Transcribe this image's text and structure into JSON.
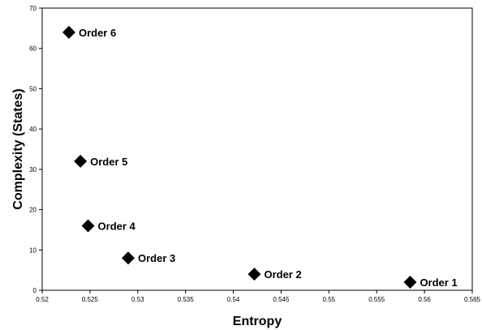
{
  "chart_data": {
    "type": "scatter",
    "title": "",
    "xlabel": "Entropy",
    "ylabel": "Complexity (States)",
    "xlim": [
      0.52,
      0.565
    ],
    "ylim": [
      0,
      70
    ],
    "xticks": [
      "0.52",
      "0.525",
      "0.53",
      "0.535",
      "0.54",
      "0.545",
      "0.55",
      "0.555",
      "0.56",
      "0.565"
    ],
    "yticks": [
      "0",
      "10",
      "20",
      "30",
      "40",
      "50",
      "60",
      "70"
    ],
    "grid": false,
    "legend": "none",
    "marker": "diamond",
    "marker_color": "#000000",
    "points": [
      {
        "label": "Order 1",
        "x": 0.5585,
        "y": 2
      },
      {
        "label": "Order 2",
        "x": 0.5422,
        "y": 4
      },
      {
        "label": "Order 3",
        "x": 0.529,
        "y": 8
      },
      {
        "label": "Order 4",
        "x": 0.5248,
        "y": 16
      },
      {
        "label": "Order 5",
        "x": 0.524,
        "y": 32
      },
      {
        "label": "Order 6",
        "x": 0.5228,
        "y": 64
      }
    ]
  }
}
